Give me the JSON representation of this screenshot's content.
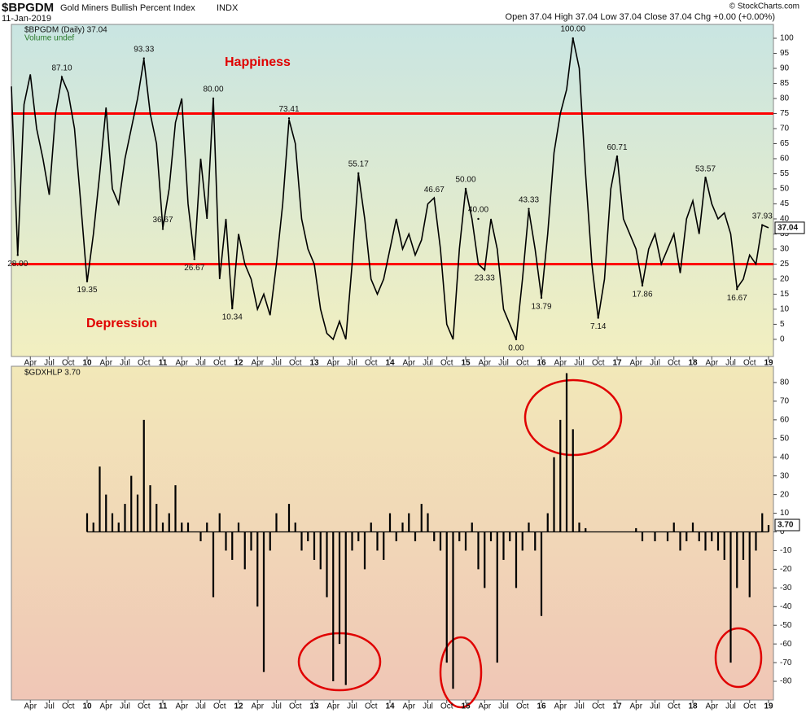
{
  "header": {
    "symbol": "$BPGDM",
    "name": "Gold Miners Bullish Percent Index",
    "exchange": "INDX",
    "date": "11-Jan-2019",
    "quote": "Open 37.04 High 37.04 Low 37.04 Close 37.04 Chg +0.00 (+0.00%)",
    "credit": "© StockCharts.com"
  },
  "chart_data": [
    {
      "type": "line",
      "legend": "$BPGDM (Daily) 37.04",
      "legend_note": "Volume undef",
      "color": "#000000",
      "reference_lines": [
        75,
        25
      ],
      "reference_color": "#ff0000",
      "zone_labels": [
        "Happiness",
        "Depression"
      ],
      "ylim": [
        -5.7,
        104.6
      ],
      "yticks": [
        0,
        5,
        10,
        15,
        20,
        25,
        30,
        35,
        40,
        45,
        50,
        55,
        60,
        65,
        70,
        75,
        80,
        85,
        90,
        95,
        100
      ],
      "xlim": [
        0,
        120
      ],
      "xticks": [
        {
          "value": 3,
          "label": "Apr"
        },
        {
          "value": 6,
          "label": "Jul"
        },
        {
          "value": 9,
          "label": "Oct"
        },
        {
          "value": 12,
          "label": "10"
        },
        {
          "value": 15,
          "label": "Apr"
        },
        {
          "value": 18,
          "label": "Jul"
        },
        {
          "value": 21,
          "label": "Oct"
        },
        {
          "value": 24,
          "label": "11"
        },
        {
          "value": 27,
          "label": "Apr"
        },
        {
          "value": 30,
          "label": "Jul"
        },
        {
          "value": 33,
          "label": "Oct"
        },
        {
          "value": 36,
          "label": "12"
        },
        {
          "value": 39,
          "label": "Apr"
        },
        {
          "value": 42,
          "label": "Jul"
        },
        {
          "value": 45,
          "label": "Oct"
        },
        {
          "value": 48,
          "label": "13"
        },
        {
          "value": 51,
          "label": "Apr"
        },
        {
          "value": 54,
          "label": "Jul"
        },
        {
          "value": 57,
          "label": "Oct"
        },
        {
          "value": 60,
          "label": "14"
        },
        {
          "value": 63,
          "label": "Apr"
        },
        {
          "value": 66,
          "label": "Jul"
        },
        {
          "value": 69,
          "label": "Oct"
        },
        {
          "value": 72,
          "label": "15"
        },
        {
          "value": 75,
          "label": "Apr"
        },
        {
          "value": 78,
          "label": "Jul"
        },
        {
          "value": 81,
          "label": "Oct"
        },
        {
          "value": 84,
          "label": "16"
        },
        {
          "value": 87,
          "label": "Apr"
        },
        {
          "value": 90,
          "label": "Jul"
        },
        {
          "value": 93,
          "label": "Oct"
        },
        {
          "value": 96,
          "label": "17"
        },
        {
          "value": 99,
          "label": "Apr"
        },
        {
          "value": 102,
          "label": "Jul"
        },
        {
          "value": 105,
          "label": "Oct"
        },
        {
          "value": 108,
          "label": "18"
        },
        {
          "value": 111,
          "label": "Apr"
        },
        {
          "value": 114,
          "label": "Jul"
        },
        {
          "value": 117,
          "label": "Oct"
        },
        {
          "value": 120,
          "label": "19"
        }
      ],
      "values": [
        84,
        28,
        78,
        88,
        70,
        60,
        48,
        75,
        87,
        82,
        70,
        45,
        19,
        35,
        55,
        77,
        50,
        45,
        60,
        70,
        80,
        93,
        75,
        65,
        37,
        50,
        72,
        80,
        45,
        27,
        60,
        40,
        80,
        20,
        40,
        10,
        35,
        25,
        20,
        10,
        15,
        8,
        25,
        45,
        73,
        65,
        40,
        30,
        25,
        10,
        2,
        0,
        6,
        0,
        25,
        55,
        40,
        20,
        15,
        20,
        30,
        40,
        30,
        35,
        28,
        33,
        45,
        47,
        30,
        5,
        0,
        30,
        50,
        40,
        25,
        23,
        40,
        30,
        10,
        5,
        0,
        20,
        43,
        30,
        14,
        35,
        62,
        75,
        83,
        100,
        90,
        55,
        25,
        7,
        20,
        50,
        61,
        40,
        35,
        30,
        18,
        30,
        35,
        25,
        30,
        35,
        22,
        40,
        46,
        35,
        54,
        45,
        40,
        42,
        35,
        17,
        20,
        28,
        25,
        38,
        37.04
      ],
      "annotations": [
        {
          "label": "28.00",
          "x": 1,
          "value": 28
        },
        {
          "label": "87.10",
          "x": 8,
          "value": 87.1
        },
        {
          "label": "19.35",
          "x": 12,
          "value": 19.35
        },
        {
          "label": "93.33",
          "x": 21,
          "value": 93.33
        },
        {
          "label": "36.67",
          "x": 24,
          "value": 36.67
        },
        {
          "label": "26.67",
          "x": 29,
          "value": 26.67
        },
        {
          "label": "80.00",
          "x": 32,
          "value": 80
        },
        {
          "label": "10.34",
          "x": 35,
          "value": 10.34
        },
        {
          "label": "73.41",
          "x": 44,
          "value": 73.41
        },
        {
          "label": "55.17",
          "x": 55,
          "value": 55.17
        },
        {
          "label": "46.67",
          "x": 67,
          "value": 46.67
        },
        {
          "label": "50.00",
          "x": 72,
          "value": 50
        },
        {
          "label": "40.00",
          "x": 74,
          "value": 40
        },
        {
          "label": "23.33",
          "x": 75,
          "value": 23.33
        },
        {
          "label": "0.00",
          "x": 80,
          "value": 0
        },
        {
          "label": "43.33",
          "x": 82,
          "value": 43.33
        },
        {
          "label": "13.79",
          "x": 84,
          "value": 13.79
        },
        {
          "label": "100.00",
          "x": 89,
          "value": 100
        },
        {
          "label": "7.14",
          "x": 93,
          "value": 7.14
        },
        {
          "label": "60.71",
          "x": 96,
          "value": 60.71
        },
        {
          "label": "17.86",
          "x": 100,
          "value": 17.86
        },
        {
          "label": "53.57",
          "x": 110,
          "value": 53.57
        },
        {
          "label": "16.67",
          "x": 115,
          "value": 16.67
        },
        {
          "label": "37.93",
          "x": 119,
          "value": 37.93
        }
      ]
    },
    {
      "type": "spikes",
      "legend": "$GDXHLP 3.70",
      "color": "#000000",
      "last_label": "3.70",
      "ylim": [
        -90,
        88.7
      ],
      "yticks": [
        -80,
        -70,
        -60,
        -50,
        -40,
        -30,
        -20,
        -10,
        0,
        10,
        20,
        30,
        40,
        50,
        60,
        70,
        80
      ],
      "xlim": [
        0,
        120
      ],
      "xticks": [
        {
          "value": 3,
          "label": "Apr"
        },
        {
          "value": 6,
          "label": "Jul"
        },
        {
          "value": 9,
          "label": "Oct"
        },
        {
          "value": 12,
          "label": "10"
        },
        {
          "value": 15,
          "label": "Apr"
        },
        {
          "value": 18,
          "label": "Jul"
        },
        {
          "value": 21,
          "label": "Oct"
        },
        {
          "value": 24,
          "label": "11"
        },
        {
          "value": 27,
          "label": "Apr"
        },
        {
          "value": 30,
          "label": "Jul"
        },
        {
          "value": 33,
          "label": "Oct"
        },
        {
          "value": 36,
          "label": "12"
        },
        {
          "value": 39,
          "label": "Apr"
        },
        {
          "value": 42,
          "label": "Jul"
        },
        {
          "value": 45,
          "label": "Oct"
        },
        {
          "value": 48,
          "label": "13"
        },
        {
          "value": 51,
          "label": "Apr"
        },
        {
          "value": 54,
          "label": "Jul"
        },
        {
          "value": 57,
          "label": "Oct"
        },
        {
          "value": 60,
          "label": "14"
        },
        {
          "value": 63,
          "label": "Apr"
        },
        {
          "value": 66,
          "label": "Jul"
        },
        {
          "value": 69,
          "label": "Oct"
        },
        {
          "value": 72,
          "label": "15"
        },
        {
          "value": 75,
          "label": "Apr"
        },
        {
          "value": 78,
          "label": "Jul"
        },
        {
          "value": 81,
          "label": "Oct"
        },
        {
          "value": 84,
          "label": "16"
        },
        {
          "value": 87,
          "label": "Apr"
        },
        {
          "value": 90,
          "label": "Jul"
        },
        {
          "value": 93,
          "label": "Oct"
        },
        {
          "value": 96,
          "label": "17"
        },
        {
          "value": 99,
          "label": "Apr"
        },
        {
          "value": 102,
          "label": "Jul"
        },
        {
          "value": 105,
          "label": "Oct"
        },
        {
          "value": 108,
          "label": "18"
        },
        {
          "value": 111,
          "label": "Apr"
        },
        {
          "value": 114,
          "label": "Jul"
        },
        {
          "value": 117,
          "label": "Oct"
        },
        {
          "value": 120,
          "label": "19"
        }
      ],
      "values": [
        null,
        null,
        null,
        null,
        null,
        null,
        null,
        null,
        null,
        null,
        null,
        null,
        10,
        5,
        35,
        20,
        10,
        5,
        15,
        30,
        20,
        60,
        25,
        15,
        5,
        10,
        25,
        5,
        5,
        0,
        -5,
        5,
        -35,
        10,
        -10,
        -15,
        5,
        -20,
        -10,
        -40,
        -75,
        -10,
        10,
        0,
        15,
        5,
        -10,
        -5,
        -15,
        -20,
        -35,
        -80,
        -60,
        -82,
        -10,
        -5,
        -20,
        5,
        -10,
        -15,
        10,
        -5,
        5,
        10,
        -5,
        15,
        10,
        -5,
        -10,
        -70,
        -84,
        -5,
        -10,
        5,
        -20,
        -30,
        -5,
        -70,
        -15,
        -5,
        -30,
        -10,
        5,
        -10,
        -45,
        10,
        40,
        60,
        85,
        55,
        5,
        2,
        0,
        0,
        0,
        0,
        0,
        0,
        0,
        2,
        -5,
        0,
        -5,
        0,
        -5,
        5,
        -10,
        -5,
        5,
        -5,
        -10,
        -5,
        -10,
        -15,
        -70,
        -30,
        -15,
        -35,
        -10,
        10,
        3.7
      ]
    }
  ]
}
